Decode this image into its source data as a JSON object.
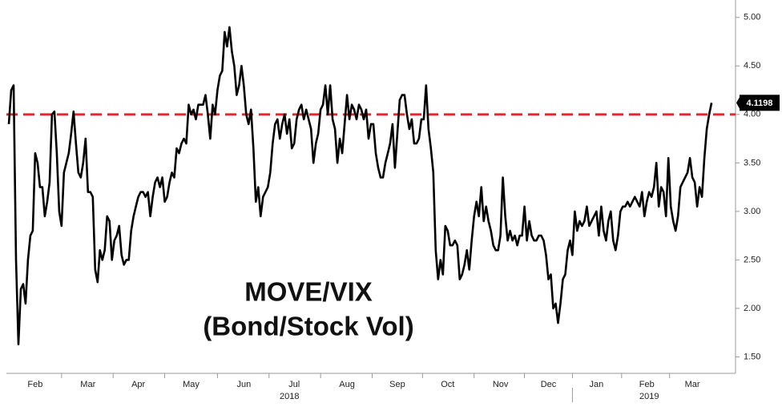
{
  "chart_data": {
    "type": "line",
    "annotations": [
      "MOVE/VIX",
      "(Bond/Stock Vol)"
    ],
    "x": [
      0,
      1,
      2,
      3,
      4,
      5,
      6,
      7,
      8,
      9,
      10,
      11,
      12,
      13,
      14,
      15,
      16,
      17,
      18,
      19,
      20,
      21,
      22,
      23,
      24,
      25,
      26,
      27,
      28,
      29,
      30,
      31,
      32,
      33,
      34,
      35,
      36,
      37,
      38,
      39,
      40,
      41,
      42,
      43,
      44,
      45,
      46,
      47,
      48,
      49,
      50,
      51,
      52,
      53,
      54,
      55,
      56,
      57,
      58,
      59,
      60,
      61,
      62,
      63,
      64,
      65,
      66,
      67,
      68,
      69,
      70,
      71,
      72,
      73,
      74,
      75,
      76,
      77,
      78,
      79,
      80,
      81,
      82,
      83,
      84,
      85,
      86,
      87,
      88,
      89,
      90,
      91,
      92,
      93,
      94,
      95,
      96,
      97,
      98,
      99,
      100,
      101,
      102,
      103,
      104,
      105,
      106,
      107,
      108,
      109,
      110,
      111,
      112,
      113,
      114,
      115,
      116,
      117,
      118,
      119,
      120,
      121,
      122,
      123,
      124,
      125,
      126,
      127,
      128,
      129,
      130,
      131,
      132,
      133,
      134,
      135,
      136,
      137,
      138,
      139,
      140,
      141,
      142,
      143,
      144,
      145,
      146,
      147,
      148,
      149,
      150,
      151,
      152,
      153,
      154,
      155,
      156,
      157,
      158,
      159,
      160,
      161,
      162,
      163,
      164,
      165,
      166,
      167,
      168,
      169,
      170,
      171,
      172,
      173,
      174,
      175,
      176,
      177,
      178,
      179,
      180,
      181,
      182,
      183,
      184,
      185,
      186,
      187,
      188,
      189,
      190,
      191,
      192,
      193,
      194,
      195,
      196,
      197,
      198,
      199,
      200,
      201,
      202,
      203,
      204,
      205,
      206,
      207,
      208,
      209,
      210,
      211,
      212,
      213,
      214,
      215,
      216,
      217,
      218,
      219,
      220,
      221,
      222,
      223,
      224,
      225,
      226,
      227,
      228,
      229,
      230,
      231,
      232,
      233,
      234,
      235,
      236,
      237,
      238,
      239,
      240,
      241,
      242,
      243,
      244,
      245,
      246,
      247,
      248,
      249,
      250,
      251,
      252,
      253,
      254,
      255,
      256,
      257,
      258,
      259,
      260,
      261,
      262,
      263,
      264,
      265,
      266,
      267,
      268,
      269,
      270,
      271,
      272,
      273,
      274,
      275,
      276,
      277,
      278,
      279,
      280,
      281,
      282,
      283,
      284,
      285,
      286,
      287,
      288,
      289,
      290,
      291,
      292,
      293
    ],
    "values": [
      3.9,
      4.25,
      4.3,
      2.5,
      1.63,
      2.2,
      2.25,
      2.05,
      2.5,
      2.75,
      2.8,
      3.6,
      3.5,
      3.25,
      3.25,
      2.95,
      3.1,
      3.3,
      4.0,
      4.03,
      3.6,
      3.0,
      2.85,
      3.4,
      3.5,
      3.6,
      3.8,
      4.03,
      3.7,
      3.4,
      3.35,
      3.5,
      3.75,
      3.2,
      3.2,
      3.15,
      2.4,
      2.27,
      2.6,
      2.5,
      2.6,
      2.95,
      2.9,
      2.5,
      2.7,
      2.75,
      2.85,
      2.55,
      2.45,
      2.5,
      2.5,
      2.8,
      2.95,
      3.05,
      3.15,
      3.2,
      3.2,
      3.15,
      3.2,
      2.95,
      3.15,
      3.3,
      3.35,
      3.25,
      3.35,
      3.1,
      3.15,
      3.3,
      3.4,
      3.35,
      3.65,
      3.6,
      3.7,
      3.75,
      3.7,
      4.1,
      4.0,
      4.05,
      3.95,
      4.1,
      4.1,
      4.1,
      4.2,
      4.0,
      3.75,
      4.1,
      4.0,
      4.25,
      4.4,
      4.45,
      4.85,
      4.7,
      4.9,
      4.65,
      4.5,
      4.2,
      4.3,
      4.5,
      4.3,
      4.0,
      3.9,
      4.05,
      3.65,
      3.1,
      3.25,
      2.95,
      3.15,
      3.2,
      3.25,
      3.4,
      3.7,
      3.9,
      3.95,
      3.75,
      3.9,
      4.0,
      3.8,
      3.95,
      3.65,
      3.7,
      3.95,
      4.05,
      4.1,
      3.95,
      4.05,
      3.95,
      3.85,
      3.5,
      3.7,
      3.8,
      4.05,
      4.1,
      4.3,
      4.0,
      4.3,
      3.95,
      3.85,
      3.5,
      3.75,
      3.6,
      3.9,
      4.2,
      3.95,
      4.1,
      4.05,
      3.95,
      4.1,
      4.05,
      3.95,
      4.05,
      3.75,
      3.9,
      3.9,
      3.6,
      3.45,
      3.35,
      3.35,
      3.5,
      3.6,
      3.7,
      3.9,
      3.45,
      3.8,
      4.15,
      4.2,
      4.2,
      4.0,
      3.85,
      3.95,
      3.7,
      3.7,
      3.75,
      3.95,
      3.95,
      4.3,
      3.85,
      3.65,
      3.4,
      2.6,
      2.3,
      2.5,
      2.35,
      2.85,
      2.8,
      2.65,
      2.65,
      2.7,
      2.65,
      2.3,
      2.35,
      2.45,
      2.6,
      2.4,
      2.7,
      2.95,
      3.1,
      2.95,
      3.25,
      2.9,
      3.05,
      2.9,
      2.8,
      2.65,
      2.6,
      2.6,
      2.75,
      3.35,
      2.95,
      2.7,
      2.8,
      2.7,
      2.75,
      2.65,
      2.75,
      2.75,
      3.05,
      2.7,
      2.9,
      2.75,
      2.7,
      2.7,
      2.75,
      2.75,
      2.7,
      2.55,
      2.3,
      2.35,
      2.0,
      2.05,
      1.85,
      2.05,
      2.3,
      2.35,
      2.6,
      2.7,
      2.55,
      3.0,
      2.8,
      2.9,
      2.85,
      2.9,
      3.05,
      2.85,
      2.9,
      2.95,
      3.0,
      2.75,
      3.05,
      2.8,
      2.7,
      2.9,
      3.0,
      2.7,
      2.6,
      2.75,
      3.0,
      3.05,
      3.05,
      3.1,
      3.05,
      3.1,
      3.15,
      3.1,
      3.05,
      3.2,
      2.95,
      3.1,
      3.2,
      3.15,
      3.25,
      3.5,
      3.05,
      3.25,
      3.2,
      2.95,
      3.55,
      3.05,
      2.9,
      2.8,
      2.95,
      3.25,
      3.3,
      3.35,
      3.4,
      3.55,
      3.35,
      3.3,
      3.05,
      3.25,
      3.15,
      3.55,
      3.85,
      4.0,
      4.1198
    ],
    "color": "#000000",
    "reference_line": {
      "value": 4.0,
      "color": "#e8262a",
      "dashed": true
    },
    "xlim": [
      -1,
      303
    ],
    "xticks": [
      {
        "value": 11,
        "label": "Feb"
      },
      {
        "value": 33,
        "label": "Mar"
      },
      {
        "value": 54,
        "label": "Apr"
      },
      {
        "value": 76,
        "label": "May"
      },
      {
        "value": 98,
        "label": "Jun"
      },
      {
        "value": 119,
        "label": "Jul"
      },
      {
        "value": 141,
        "label": "Aug"
      },
      {
        "value": 162,
        "label": "Sep"
      },
      {
        "value": 183,
        "label": "Oct"
      },
      {
        "value": 205,
        "label": "Nov"
      },
      {
        "value": 225,
        "label": "Dec"
      },
      {
        "value": 245,
        "label": "Jan"
      },
      {
        "value": 266,
        "label": "Feb"
      },
      {
        "value": 285,
        "label": "Mar"
      }
    ],
    "x_group_labels": [
      {
        "value": 117,
        "label": "2018"
      },
      {
        "value": 267,
        "label": "2019"
      }
    ],
    "ylim": [
      1.33,
      5.18
    ],
    "yticks": [
      {
        "value": 1.5,
        "label": "1.50"
      },
      {
        "value": 2,
        "label": "2.00"
      },
      {
        "value": 2.5,
        "label": "2.50"
      },
      {
        "value": 3,
        "label": "3.00"
      },
      {
        "value": 3.5,
        "label": "3.50"
      },
      {
        "value": 4,
        "label": "4.00"
      },
      {
        "value": 4.5,
        "label": "4.50"
      },
      {
        "value": 5,
        "label": "5.00"
      }
    ],
    "y_axis_side": "right"
  }
}
